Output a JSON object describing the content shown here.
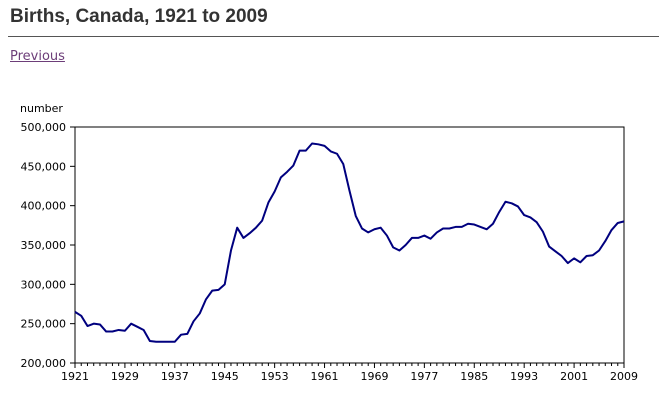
{
  "page": {
    "title": "Births, Canada, 1921 to 2009",
    "previous_link": "Previous"
  },
  "colors": {
    "line": "#00007f",
    "title_text": "#333333",
    "link": "#6d3e79"
  },
  "chart_data": {
    "type": "line",
    "title": "",
    "ylabel": "number",
    "xlabel": "",
    "xlim": [
      1921,
      2009
    ],
    "ylim": [
      200000,
      500000
    ],
    "x_ticks": [
      1921,
      1929,
      1937,
      1945,
      1953,
      1961,
      1969,
      1977,
      1985,
      1993,
      2001,
      2009
    ],
    "y_ticks": [
      200000,
      250000,
      300000,
      350000,
      400000,
      450000,
      500000
    ],
    "y_tick_labels": [
      "200,000",
      "250,000",
      "300,000",
      "350,000",
      "400,000",
      "450,000",
      "500,000"
    ],
    "grid": false,
    "series": [
      {
        "x": [
          1921,
          1922,
          1923,
          1924,
          1925,
          1926,
          1927,
          1928,
          1929,
          1930,
          1931,
          1932,
          1933,
          1934,
          1935,
          1936,
          1937,
          1938,
          1939,
          1940,
          1941,
          1942,
          1943,
          1944,
          1945,
          1946,
          1947,
          1948,
          1949,
          1950,
          1951,
          1952,
          1953,
          1954,
          1955,
          1956,
          1957,
          1958,
          1959,
          1960,
          1961,
          1962,
          1963,
          1964,
          1965,
          1966,
          1967,
          1968,
          1969,
          1970,
          1971,
          1972,
          1973,
          1974,
          1975,
          1976,
          1977,
          1978,
          1979,
          1980,
          1981,
          1982,
          1983,
          1984,
          1985,
          1986,
          1987,
          1988,
          1989,
          1990,
          1991,
          1992,
          1993,
          1994,
          1995,
          1996,
          1997,
          1998,
          1999,
          2000,
          2001,
          2002,
          2003,
          2004,
          2005,
          2006,
          2007,
          2008,
          2009
        ],
        "values": [
          265000,
          260000,
          247000,
          250000,
          249000,
          240000,
          240000,
          242000,
          241000,
          250000,
          246000,
          242000,
          228000,
          227000,
          227000,
          227000,
          227000,
          236000,
          237000,
          253000,
          263000,
          281000,
          292000,
          293000,
          300000,
          343000,
          372000,
          359000,
          365000,
          372000,
          381000,
          404000,
          418000,
          436000,
          443000,
          451000,
          470000,
          470000,
          479000,
          478000,
          476000,
          469000,
          466000,
          453000,
          419000,
          387000,
          371000,
          366000,
          370000,
          372000,
          362000,
          347000,
          343000,
          350000,
          359000,
          359000,
          362000,
          358000,
          366000,
          371000,
          371000,
          373000,
          373000,
          377000,
          376000,
          373000,
          370000,
          377000,
          392000,
          405000,
          403000,
          399000,
          388000,
          385000,
          379000,
          367000,
          348000,
          342000,
          336000,
          327000,
          333000,
          328000,
          336000,
          337000,
          343000,
          355000,
          369000,
          378000,
          380000
        ]
      }
    ]
  }
}
